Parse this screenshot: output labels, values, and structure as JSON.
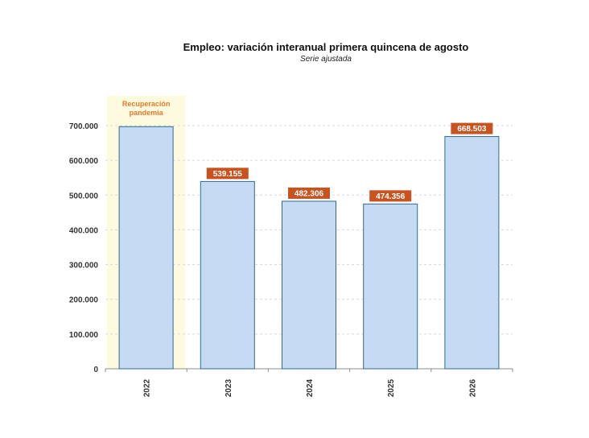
{
  "chart_data": {
    "type": "bar",
    "title": "Empleo: variación interanual primera quincena de agosto",
    "subtitle": "Serie ajustada",
    "categories": [
      "2022",
      "2023",
      "2024",
      "2025",
      "2026"
    ],
    "values": [
      697000,
      539155,
      482306,
      474356,
      668503
    ],
    "data_labels": [
      "",
      "539.155",
      "482.306",
      "474.356",
      "668.503"
    ],
    "ylim": [
      0,
      700000
    ],
    "yticks": [
      0,
      100000,
      200000,
      300000,
      400000,
      500000,
      600000,
      700000
    ],
    "ytick_labels": [
      "0",
      "100.000",
      "200.000",
      "300.000",
      "400.000",
      "500.000",
      "600.000",
      "700.000"
    ],
    "grid": true,
    "annotation": {
      "category": "2022",
      "lines": [
        "Recuperación",
        "pandemia"
      ]
    },
    "colors": {
      "bar_fill": "#c5dbf3",
      "bar_stroke": "#2e6b8f",
      "label_bg": "#c9531f",
      "highlight": "#fdfae0",
      "annotation_text": "#e07b2a",
      "grid": "#d9d9d9"
    }
  }
}
